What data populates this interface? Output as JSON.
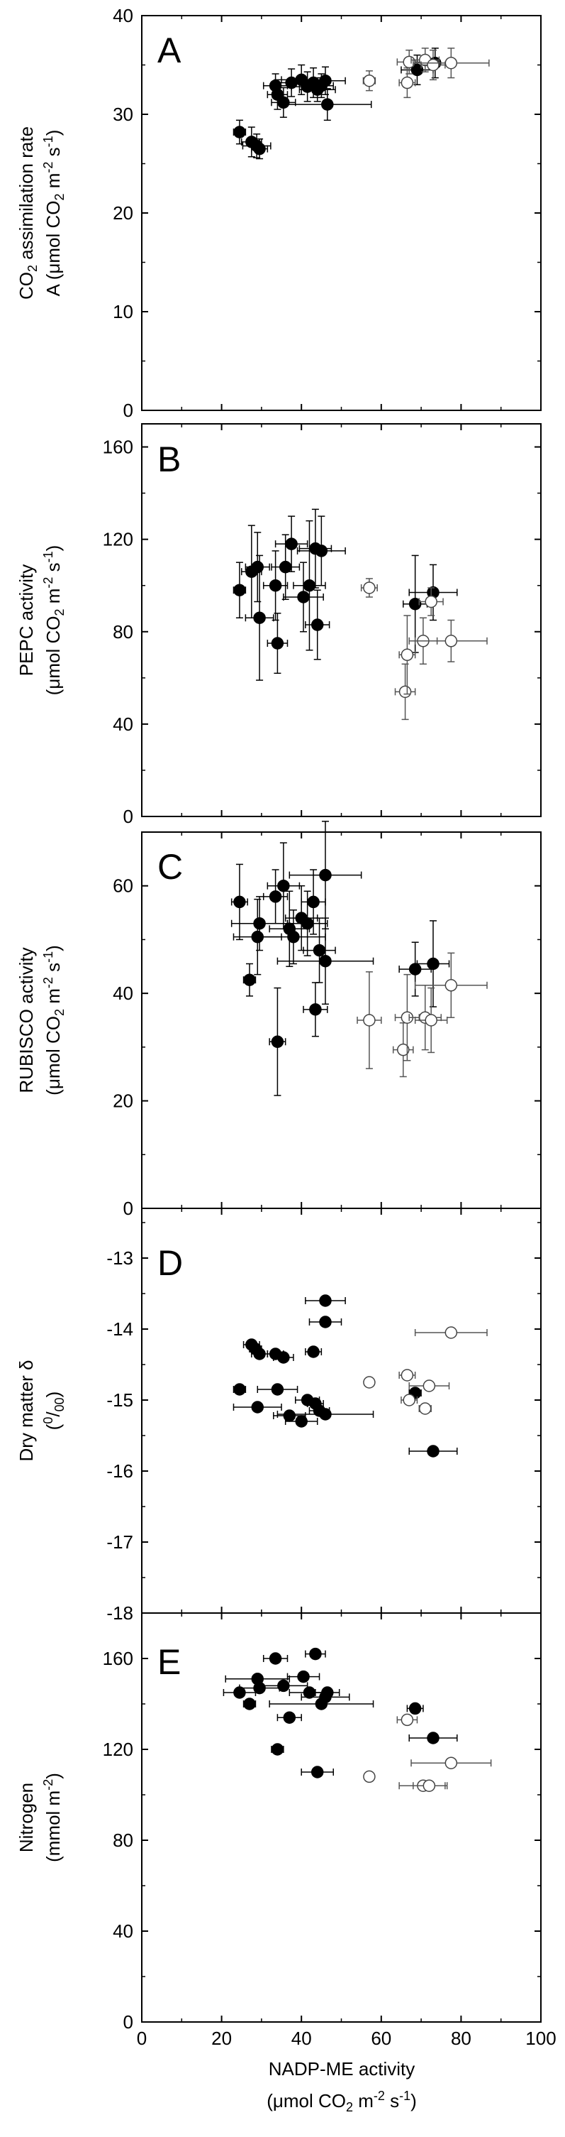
{
  "figure": {
    "xlabel_line1": "NADP-ME activity",
    "xlabel_line2_pre": "(μmol CO",
    "xlabel_line2_sub": "2",
    "xlabel_line2_mid": " m",
    "xlabel_line2_sup1": "-2",
    "xlabel_line2_mid2": " s",
    "xlabel_line2_sup2": "-1",
    "xlabel_line2_post": ")"
  },
  "chart_data": [
    {
      "type": "scatter",
      "panel": "A",
      "ylabel_line1": "CO2 assimilation rate",
      "ylabel_line2": "A (μmol CO2 m-2 s-1)",
      "xlim": [
        0,
        100
      ],
      "ylim": [
        0,
        40
      ],
      "x_ticks": [
        0,
        20,
        40,
        60,
        80,
        100
      ],
      "y_ticks": [
        0,
        10,
        20,
        30,
        40
      ],
      "series": [
        {
          "marker": "filled-circle",
          "points": [
            {
              "x": 24.5,
              "y": 28.2,
              "xerr": 1.5,
              "yerr": 1.2
            },
            {
              "x": 27.5,
              "y": 27.2,
              "xerr": 2.5,
              "yerr": 1.5
            },
            {
              "x": 28.8,
              "y": 26.8,
              "xerr": 3.5,
              "yerr": 1.2
            },
            {
              "x": 29.5,
              "y": 26.5,
              "xerr": 2.0,
              "yerr": 1.0
            },
            {
              "x": 33.5,
              "y": 32.9,
              "xerr": 3.0,
              "yerr": 1.2
            },
            {
              "x": 34.0,
              "y": 32.0,
              "xerr": 2.5,
              "yerr": 1.5
            },
            {
              "x": 35.5,
              "y": 31.2,
              "xerr": 3.0,
              "yerr": 1.5
            },
            {
              "x": 37.5,
              "y": 33.2,
              "xerr": 4.0,
              "yerr": 1.4
            },
            {
              "x": 40.0,
              "y": 33.5,
              "xerr": 5.0,
              "yerr": 1.5
            },
            {
              "x": 41.5,
              "y": 32.8,
              "xerr": 4.0,
              "yerr": 1.5
            },
            {
              "x": 43.0,
              "y": 33.2,
              "xerr": 3.5,
              "yerr": 1.5
            },
            {
              "x": 44.0,
              "y": 32.5,
              "xerr": 4.5,
              "yerr": 1.2
            },
            {
              "x": 45.0,
              "y": 32.9,
              "xerr": 3.0,
              "yerr": 1.2
            },
            {
              "x": 46.0,
              "y": 33.4,
              "xerr": 5.0,
              "yerr": 1.4
            },
            {
              "x": 46.5,
              "y": 31.0,
              "xerr": 11.0,
              "yerr": 1.6
            },
            {
              "x": 69.0,
              "y": 34.5,
              "xerr": 4.0,
              "yerr": 1.5
            },
            {
              "x": 73.5,
              "y": 35.2,
              "xerr": 5.0,
              "yerr": 1.5
            }
          ]
        },
        {
          "marker": "open-circle",
          "points": [
            {
              "x": 57.0,
              "y": 33.4,
              "xerr": 1.5,
              "yerr": 1.0
            },
            {
              "x": 66.5,
              "y": 33.2,
              "xerr": 2.0,
              "yerr": 1.5
            },
            {
              "x": 67.0,
              "y": 35.3,
              "xerr": 3.0,
              "yerr": 1.2
            },
            {
              "x": 71.0,
              "y": 35.5,
              "xerr": 3.5,
              "yerr": 1.2
            },
            {
              "x": 73.0,
              "y": 35.0,
              "xerr": 3.0,
              "yerr": 1.5
            },
            {
              "x": 77.5,
              "y": 35.2,
              "xerr": 9.5,
              "yerr": 1.5
            }
          ]
        }
      ]
    },
    {
      "type": "scatter",
      "panel": "B",
      "ylabel_line1": "PEPC activity",
      "ylabel_line2": "(μmol CO2 m-2 s-1)",
      "xlim": [
        0,
        100
      ],
      "ylim": [
        0,
        170
      ],
      "x_ticks": [
        0,
        20,
        40,
        60,
        80,
        100
      ],
      "y_ticks": [
        0,
        40,
        80,
        120,
        160
      ],
      "series": [
        {
          "marker": "filled-circle",
          "points": [
            {
              "x": 24.5,
              "y": 98,
              "xerr": 1.5,
              "yerr": 12
            },
            {
              "x": 27.5,
              "y": 106,
              "xerr": 2.5,
              "yerr": 20
            },
            {
              "x": 29.0,
              "y": 108,
              "xerr": 3.0,
              "yerr": 15
            },
            {
              "x": 29.5,
              "y": 86,
              "xerr": 3.5,
              "yerr": 27
            },
            {
              "x": 33.5,
              "y": 100,
              "xerr": 3.0,
              "yerr": 15
            },
            {
              "x": 34.0,
              "y": 75,
              "xerr": 2.5,
              "yerr": 13
            },
            {
              "x": 36.0,
              "y": 108,
              "xerr": 3.5,
              "yerr": 14
            },
            {
              "x": 37.5,
              "y": 118,
              "xerr": 4.0,
              "yerr": 12
            },
            {
              "x": 40.5,
              "y": 95,
              "xerr": 5.0,
              "yerr": 15
            },
            {
              "x": 42.0,
              "y": 100,
              "xerr": 4.0,
              "yerr": 28
            },
            {
              "x": 43.5,
              "y": 116,
              "xerr": 4.0,
              "yerr": 17
            },
            {
              "x": 44.0,
              "y": 83,
              "xerr": 3.0,
              "yerr": 15
            },
            {
              "x": 45.0,
              "y": 115,
              "xerr": 6.0,
              "yerr": 15
            },
            {
              "x": 68.5,
              "y": 92,
              "xerr": 3.0,
              "yerr": 21
            },
            {
              "x": 73.0,
              "y": 97,
              "xerr": 6.0,
              "yerr": 12
            }
          ]
        },
        {
          "marker": "open-circle",
          "points": [
            {
              "x": 57.0,
              "y": 99,
              "xerr": 2.0,
              "yerr": 4
            },
            {
              "x": 66.0,
              "y": 54,
              "xerr": 2.5,
              "yerr": 12
            },
            {
              "x": 66.5,
              "y": 70,
              "xerr": 2.0,
              "yerr": 17
            },
            {
              "x": 70.5,
              "y": 76,
              "xerr": 3.5,
              "yerr": 10
            },
            {
              "x": 72.5,
              "y": 93,
              "xerr": 3.0,
              "yerr": 6
            },
            {
              "x": 77.5,
              "y": 76,
              "xerr": 9.0,
              "yerr": 9
            }
          ]
        }
      ]
    },
    {
      "type": "scatter",
      "panel": "C",
      "ylabel_line1": "RUBISCO activity",
      "ylabel_line2": "(μmol CO2 m-2 s-1)",
      "xlim": [
        0,
        100
      ],
      "ylim": [
        0,
        70
      ],
      "x_ticks": [
        0,
        20,
        40,
        60,
        80,
        100
      ],
      "y_ticks": [
        0,
        20,
        40,
        60
      ],
      "series": [
        {
          "marker": "filled-circle",
          "points": [
            {
              "x": 24.5,
              "y": 57.0,
              "xerr": 2.0,
              "yerr": 7
            },
            {
              "x": 27.0,
              "y": 42.5,
              "xerr": 1.5,
              "yerr": 3
            },
            {
              "x": 29.0,
              "y": 50.5,
              "xerr": 6.0,
              "yerr": 7
            },
            {
              "x": 29.5,
              "y": 53.0,
              "xerr": 7.0,
              "yerr": 5
            },
            {
              "x": 33.5,
              "y": 58.0,
              "xerr": 3.0,
              "yerr": 5
            },
            {
              "x": 34.0,
              "y": 31.0,
              "xerr": 2.0,
              "yerr": 10
            },
            {
              "x": 35.5,
              "y": 60.0,
              "xerr": 4.0,
              "yerr": 8
            },
            {
              "x": 37.0,
              "y": 52.0,
              "xerr": 5.0,
              "yerr": 7
            },
            {
              "x": 38.0,
              "y": 50.5,
              "xerr": 8.0,
              "yerr": 5
            },
            {
              "x": 40.0,
              "y": 54.0,
              "xerr": 4.0,
              "yerr": 6
            },
            {
              "x": 41.5,
              "y": 53.0,
              "xerr": 5.0,
              "yerr": 6
            },
            {
              "x": 43.0,
              "y": 57.0,
              "xerr": 3.0,
              "yerr": 6
            },
            {
              "x": 43.5,
              "y": 37.0,
              "xerr": 3.0,
              "yerr": 5
            },
            {
              "x": 44.5,
              "y": 48.0,
              "xerr": 4.0,
              "yerr": 6
            },
            {
              "x": 46.0,
              "y": 62.0,
              "xerr": 9.0,
              "yerr": 10
            },
            {
              "x": 46.0,
              "y": 46.0,
              "xerr": 12.0,
              "yerr": 8
            },
            {
              "x": 68.5,
              "y": 44.5,
              "xerr": 4.0,
              "yerr": 5
            },
            {
              "x": 73.0,
              "y": 45.5,
              "xerr": 4.0,
              "yerr": 8
            }
          ]
        },
        {
          "marker": "open-circle",
          "points": [
            {
              "x": 57.0,
              "y": 35.0,
              "xerr": 3.0,
              "yerr": 9
            },
            {
              "x": 65.5,
              "y": 29.5,
              "xerr": 2.5,
              "yerr": 5
            },
            {
              "x": 66.5,
              "y": 35.5,
              "xerr": 3.0,
              "yerr": 8
            },
            {
              "x": 71.0,
              "y": 35.5,
              "xerr": 4.0,
              "yerr": 6
            },
            {
              "x": 72.5,
              "y": 35.0,
              "xerr": 4.0,
              "yerr": 6
            },
            {
              "x": 77.5,
              "y": 41.5,
              "xerr": 9.0,
              "yerr": 6
            }
          ]
        }
      ]
    },
    {
      "type": "scatter",
      "panel": "D",
      "ylabel_line1": "Dry matter δ",
      "ylabel_line2": "(0/00)",
      "xlim": [
        0,
        100
      ],
      "ylim": [
        -18,
        -12.3
      ],
      "x_ticks": [
        0,
        20,
        40,
        60,
        80,
        100
      ],
      "y_ticks": [
        -13,
        -14,
        -15,
        -16,
        -17,
        -18
      ],
      "series": [
        {
          "marker": "filled-circle",
          "points": [
            {
              "x": 24.5,
              "y": -14.85,
              "xerr": 1.5
            },
            {
              "x": 27.5,
              "y": -14.22,
              "xerr": 2.0
            },
            {
              "x": 28.5,
              "y": -14.28,
              "xerr": 1.5
            },
            {
              "x": 29.0,
              "y": -15.1,
              "xerr": 6.0
            },
            {
              "x": 29.5,
              "y": -14.35,
              "xerr": 2.0
            },
            {
              "x": 33.5,
              "y": -14.35,
              "xerr": 2.0
            },
            {
              "x": 34.0,
              "y": -14.85,
              "xerr": 5.0
            },
            {
              "x": 35.5,
              "y": -14.4,
              "xerr": 2.5
            },
            {
              "x": 37.0,
              "y": -15.22,
              "xerr": 4.0
            },
            {
              "x": 40.0,
              "y": -15.3,
              "xerr": 4.0
            },
            {
              "x": 41.5,
              "y": -15.0,
              "xerr": 3.0
            },
            {
              "x": 43.0,
              "y": -14.32,
              "xerr": 2.0
            },
            {
              "x": 43.5,
              "y": -15.05,
              "xerr": 2.0
            },
            {
              "x": 44.5,
              "y": -15.15,
              "xerr": 2.5
            },
            {
              "x": 46.0,
              "y": -15.2,
              "xerr": 12.0
            },
            {
              "x": 46.0,
              "y": -13.6,
              "xerr": 5.0
            },
            {
              "x": 46.0,
              "y": -13.9,
              "xerr": 4.0
            },
            {
              "x": 68.5,
              "y": -14.9,
              "xerr": 1.5
            },
            {
              "x": 73.0,
              "y": -15.72,
              "xerr": 6.0
            }
          ]
        },
        {
          "marker": "open-circle",
          "points": [
            {
              "x": 57.0,
              "y": -14.75,
              "xerr": 0.5
            },
            {
              "x": 66.5,
              "y": -14.65,
              "xerr": 2.0
            },
            {
              "x": 67.0,
              "y": -15.0,
              "xerr": 2.0
            },
            {
              "x": 71.0,
              "y": -15.12,
              "xerr": 1.5
            },
            {
              "x": 72.0,
              "y": -14.8,
              "xerr": 5.0
            },
            {
              "x": 77.5,
              "y": -14.05,
              "xerr": 9.0
            }
          ]
        }
      ]
    },
    {
      "type": "scatter",
      "panel": "E",
      "ylabel_line1": "Nitrogen",
      "ylabel_line2": "(mmol m-2)",
      "xlim": [
        0,
        100
      ],
      "ylim": [
        0,
        180
      ],
      "x_ticks": [
        0,
        20,
        40,
        60,
        80,
        100
      ],
      "y_ticks": [
        0,
        40,
        80,
        120,
        160
      ],
      "series": [
        {
          "marker": "filled-circle",
          "points": [
            {
              "x": 24.5,
              "y": 145,
              "xerr": 4.0
            },
            {
              "x": 27.0,
              "y": 140,
              "xerr": 1.5
            },
            {
              "x": 29.0,
              "y": 151,
              "xerr": 8.0
            },
            {
              "x": 29.5,
              "y": 147,
              "xerr": 5.0
            },
            {
              "x": 33.5,
              "y": 160,
              "xerr": 3.0
            },
            {
              "x": 34.0,
              "y": 120,
              "xerr": 1.5
            },
            {
              "x": 35.5,
              "y": 148,
              "xerr": 6.0
            },
            {
              "x": 37.0,
              "y": 134,
              "xerr": 3.0
            },
            {
              "x": 40.5,
              "y": 152,
              "xerr": 4.0
            },
            {
              "x": 42.0,
              "y": 145,
              "xerr": 5.0
            },
            {
              "x": 43.5,
              "y": 162,
              "xerr": 2.5
            },
            {
              "x": 44.0,
              "y": 110,
              "xerr": 4.0
            },
            {
              "x": 45.0,
              "y": 140,
              "xerr": 13.0
            },
            {
              "x": 46.0,
              "y": 143,
              "xerr": 6.0
            },
            {
              "x": 46.5,
              "y": 145,
              "xerr": 3.0
            },
            {
              "x": 68.5,
              "y": 138,
              "xerr": 2.0
            },
            {
              "x": 73.0,
              "y": 125,
              "xerr": 6.0
            }
          ]
        },
        {
          "marker": "open-circle",
          "points": [
            {
              "x": 57.0,
              "y": 108,
              "xerr": 0.5
            },
            {
              "x": 66.5,
              "y": 133,
              "xerr": 2.5
            },
            {
              "x": 70.5,
              "y": 104,
              "xerr": 6.0
            },
            {
              "x": 72.0,
              "y": 104,
              "xerr": 4.0
            },
            {
              "x": 77.5,
              "y": 114,
              "xerr": 10.0
            }
          ]
        }
      ]
    }
  ]
}
